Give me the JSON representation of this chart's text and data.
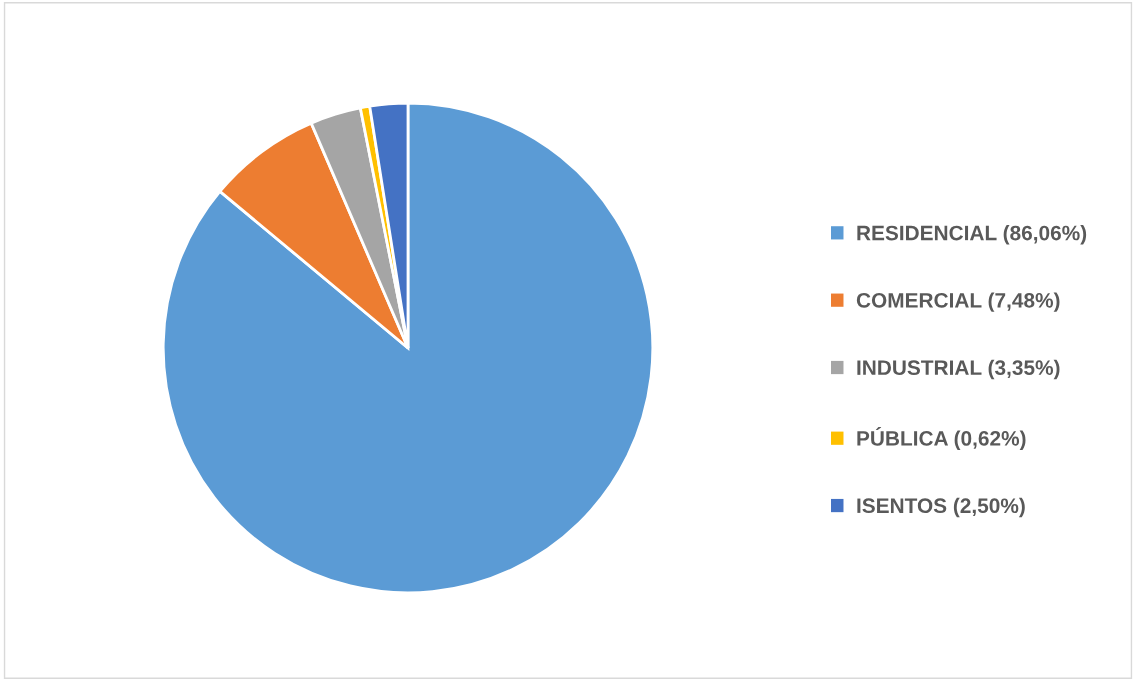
{
  "chart_data": {
    "type": "pie",
    "categories": [
      "RESIDENCIAL (86,06%)",
      "COMERCIAL (7,48%)",
      "INDUSTRIAL (3,35%)",
      "PÚBLICA (0,62%)",
      "ISENTOS (2,50%)"
    ],
    "values": [
      86.06,
      7.48,
      3.35,
      0.62,
      2.5
    ],
    "colors": [
      "#5b9bd5",
      "#ed7d31",
      "#a5a5a5",
      "#ffc000",
      "#4472c4"
    ],
    "legend": "right"
  }
}
